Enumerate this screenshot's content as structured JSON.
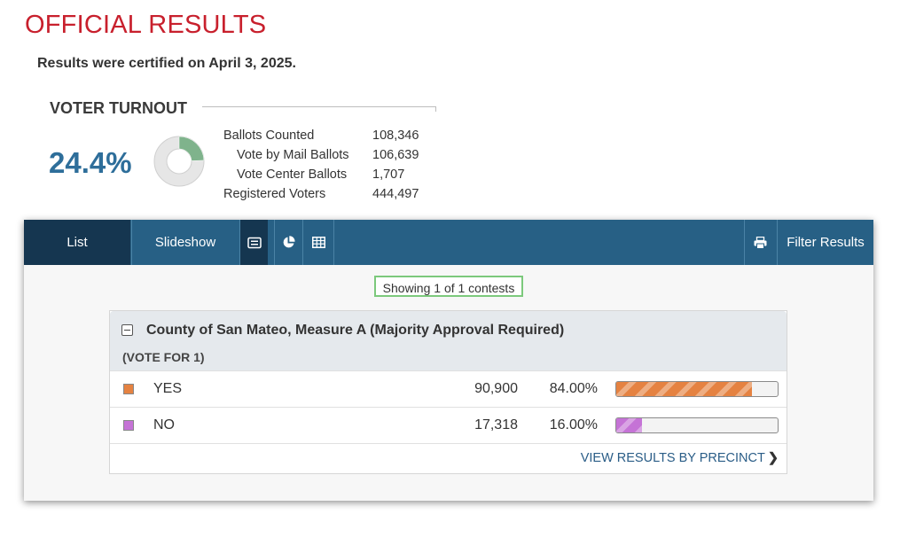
{
  "header": {
    "title": "OFFICIAL RESULTS",
    "certified_text": "Results were certified on April 3, 2025."
  },
  "turnout": {
    "heading": "VOTER TURNOUT",
    "percent_text": "24.4%",
    "percent_value": 24.4,
    "stats": [
      {
        "label": "Ballots Counted",
        "value": "108,346"
      },
      {
        "label": "Vote by Mail Ballots",
        "value": "106,639"
      },
      {
        "label": "Vote Center Ballots",
        "value": "1,707"
      },
      {
        "label": "Registered Voters",
        "value": "444,497"
      }
    ],
    "colors": {
      "filled": "#7fb38c",
      "empty": "#e6e6e6"
    }
  },
  "toolbar": {
    "list_label": "List",
    "slideshow_label": "Slideshow",
    "icons": [
      "list-view-icon",
      "pie-chart-icon",
      "table-icon",
      "print-icon"
    ],
    "filter_label": "Filter Results",
    "colors": {
      "bar": "#276085",
      "active": "#153650"
    }
  },
  "results": {
    "showing_text": "Showing 1 of 1 contests",
    "contest": {
      "title": "County of San Mateo, Measure A (Majority Approval Required)",
      "vote_for": "(VOTE FOR 1)",
      "candidates": [
        {
          "name": "YES",
          "votes": "90,900",
          "percent": "84.00%",
          "percent_value": 84.0,
          "color": "#e58241"
        },
        {
          "name": "NO",
          "votes": "17,318",
          "percent": "16.00%",
          "percent_value": 16.0,
          "color": "#c573d6"
        }
      ],
      "precinct_link": "VIEW RESULTS BY PRECINCT"
    }
  }
}
